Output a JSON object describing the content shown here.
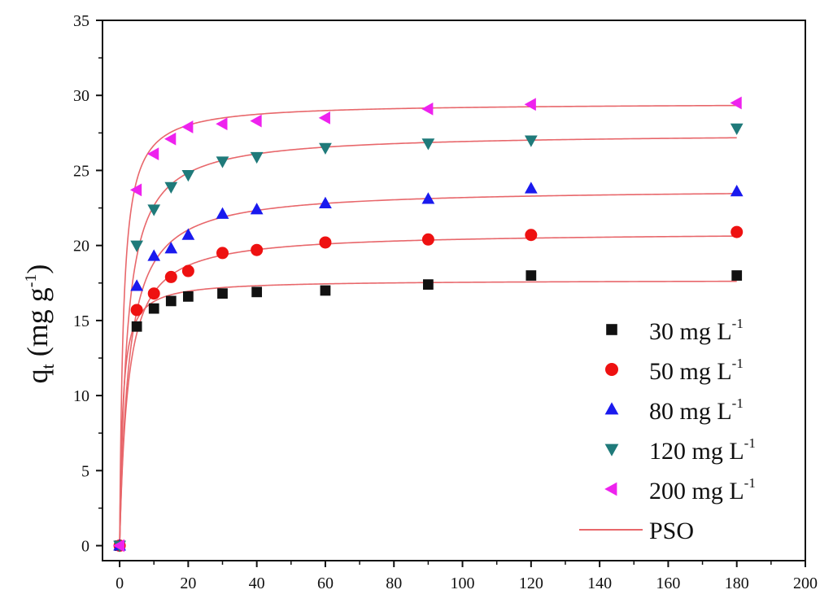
{
  "chart_data": {
    "type": "scatter",
    "title": "",
    "xlabel": "",
    "ylabel": {
      "base": "q",
      "sub": "t",
      "unit_open": " (mg g",
      "unit_sup": "-1",
      "unit_close": ")"
    },
    "xlim": [
      -5,
      200
    ],
    "ylim": [
      -1,
      35
    ],
    "x_ticks": [
      0,
      20,
      40,
      60,
      80,
      100,
      120,
      140,
      160,
      180,
      200
    ],
    "y_ticks": [
      0,
      5,
      10,
      15,
      20,
      25,
      30,
      35
    ],
    "grid": false,
    "legend_position": "bottom-right",
    "fit_name": "PSO",
    "fit_color": "#e8676b",
    "series": [
      {
        "name": "30 mg L",
        "name_sup": "-1",
        "marker": "square",
        "color": "#111111",
        "x": [
          0,
          5,
          10,
          15,
          20,
          30,
          40,
          60,
          90,
          120,
          180
        ],
        "y": [
          0,
          14.6,
          15.8,
          16.3,
          16.6,
          16.8,
          16.9,
          17.0,
          17.4,
          18.0,
          18.0
        ],
        "fit": {
          "qe": 17.7,
          "k": 0.064
        }
      },
      {
        "name": "50 mg L",
        "name_sup": "-1",
        "marker": "circle",
        "color": "#ee1111",
        "x": [
          0,
          5,
          10,
          15,
          20,
          30,
          40,
          60,
          90,
          120,
          180
        ],
        "y": [
          0,
          15.7,
          16.8,
          17.9,
          18.3,
          19.5,
          19.7,
          20.2,
          20.4,
          20.7,
          20.9
        ],
        "fit": {
          "qe": 20.9,
          "k": 0.02
        }
      },
      {
        "name": "80 mg L",
        "name_sup": "-1",
        "marker": "triangle-up",
        "color": "#1a1aee",
        "x": [
          0,
          5,
          10,
          15,
          20,
          30,
          40,
          60,
          90,
          120,
          180
        ],
        "y": [
          0,
          17.3,
          19.3,
          19.8,
          20.7,
          22.1,
          22.4,
          22.8,
          23.1,
          23.8,
          23.6
        ],
        "fit": {
          "qe": 23.8,
          "k": 0.016
        }
      },
      {
        "name": "120 mg L",
        "name_sup": "-1",
        "marker": "triangle-down",
        "color": "#1f7a7a",
        "x": [
          0,
          5,
          10,
          15,
          20,
          30,
          40,
          60,
          90,
          120,
          180
        ],
        "y": [
          0,
          20.0,
          22.4,
          23.9,
          24.7,
          25.6,
          25.9,
          26.5,
          26.8,
          27.0,
          27.8
        ],
        "fit": {
          "qe": 27.5,
          "k": 0.017
        }
      },
      {
        "name": "200 mg L",
        "name_sup": "-1",
        "marker": "triangle-left",
        "color": "#ee22ee",
        "x": [
          0,
          5,
          10,
          15,
          20,
          30,
          40,
          60,
          90,
          120,
          180
        ],
        "y": [
          0,
          23.7,
          26.1,
          27.1,
          27.9,
          28.1,
          28.3,
          28.5,
          29.1,
          29.4,
          29.5
        ],
        "fit": {
          "qe": 29.5,
          "k": 0.032
        }
      }
    ]
  }
}
